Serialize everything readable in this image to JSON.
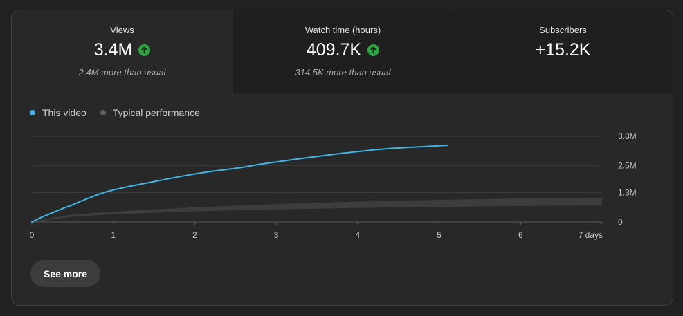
{
  "tabs": [
    {
      "label": "Views",
      "value": "3.4M",
      "trend_icon": "arrow-up-icon",
      "sub": "2.4M more than usual"
    },
    {
      "label": "Watch time (hours)",
      "value": "409.7K",
      "trend_icon": "arrow-up-icon",
      "sub": "314.5K more than usual"
    },
    {
      "label": "Subscribers",
      "value": "+15.2K"
    }
  ],
  "legend": {
    "this_video": "This video",
    "typical": "Typical performance"
  },
  "colors": {
    "accent": "#3ea6ff",
    "line": "#41b6e6",
    "band": "#3d3d3d",
    "trend_up": "#2ba640"
  },
  "button": {
    "see_more": "See more"
  },
  "chart_data": {
    "type": "line",
    "title": "",
    "xlabel": "",
    "ylabel": "",
    "x_ticks": [
      "0",
      "1",
      "2",
      "3",
      "4",
      "5",
      "6",
      "7 days"
    ],
    "y_ticks": [
      "0",
      "1.3M",
      "2.5M",
      "3.8M"
    ],
    "xlim": [
      0,
      7
    ],
    "ylim": [
      0,
      3800000
    ],
    "series": [
      {
        "name": "This video",
        "x": [
          0,
          0.1,
          0.2,
          0.3,
          0.4,
          0.5,
          0.6,
          0.7,
          0.8,
          0.9,
          1.0,
          1.2,
          1.4,
          1.6,
          1.8,
          2.0,
          2.2,
          2.4,
          2.6,
          2.8,
          3.0,
          3.2,
          3.4,
          3.6,
          3.8,
          4.0,
          4.2,
          4.4,
          4.6,
          4.8,
          5.0,
          5.1
        ],
        "y": [
          0,
          180000,
          330000,
          480000,
          630000,
          760000,
          920000,
          1060000,
          1200000,
          1320000,
          1420000,
          1580000,
          1720000,
          1860000,
          2000000,
          2130000,
          2240000,
          2330000,
          2430000,
          2560000,
          2660000,
          2760000,
          2860000,
          2950000,
          3040000,
          3120000,
          3200000,
          3260000,
          3300000,
          3340000,
          3380000,
          3400000
        ]
      },
      {
        "name": "Typical performance",
        "x": [
          0,
          0.25,
          0.5,
          1.0,
          1.5,
          2.0,
          2.5,
          3.0,
          3.5,
          4.0,
          4.5,
          5.0,
          5.5,
          6.0,
          6.5,
          7.0
        ],
        "low": [
          0,
          120000,
          230000,
          340000,
          410000,
          470000,
          520000,
          560000,
          590000,
          620000,
          650000,
          670000,
          690000,
          710000,
          720000,
          730000
        ],
        "high": [
          0,
          190000,
          330000,
          460000,
          560000,
          650000,
          720000,
          790000,
          850000,
          900000,
          940000,
          980000,
          1010000,
          1040000,
          1060000,
          1080000
        ]
      }
    ],
    "grid": true,
    "legend_position": "top-left"
  }
}
